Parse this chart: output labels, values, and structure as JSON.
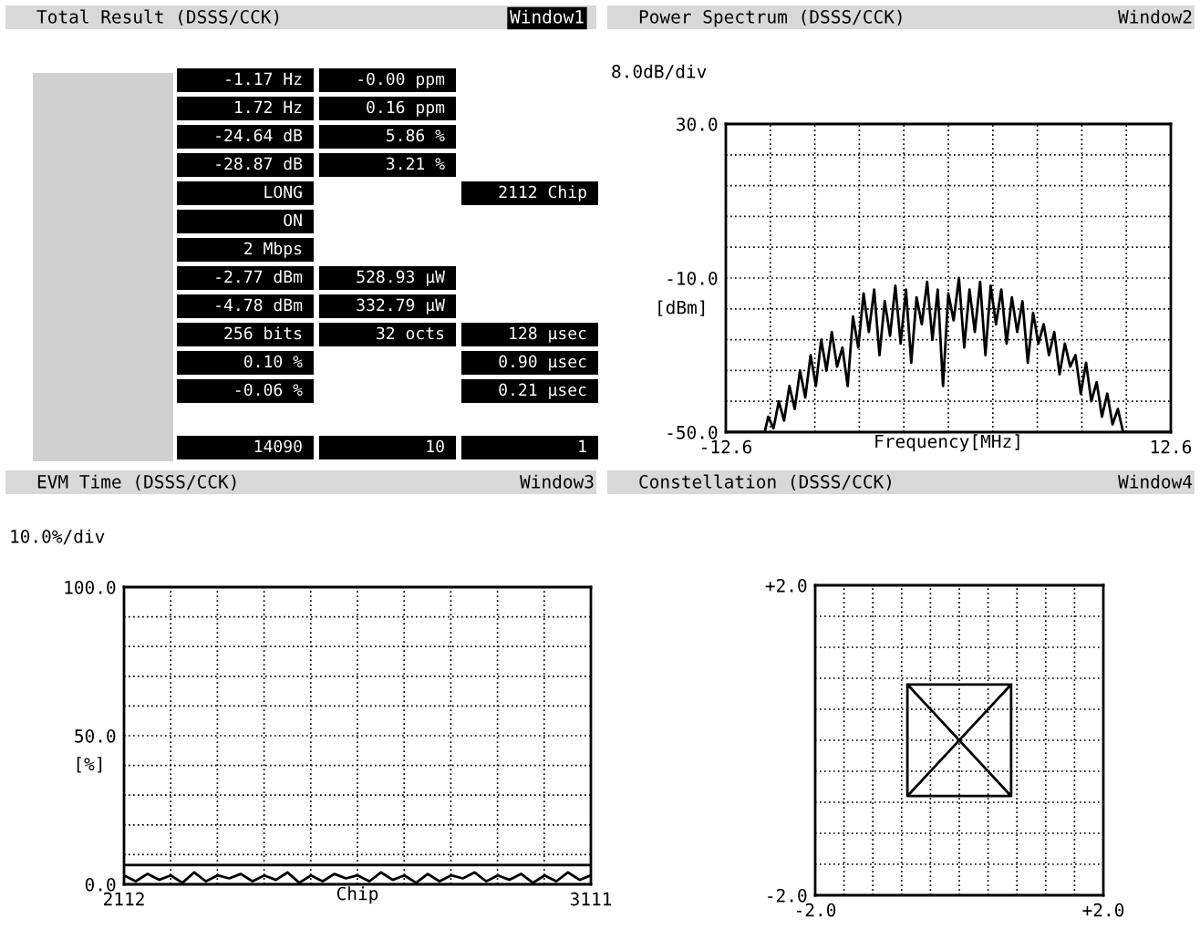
{
  "chart_data": [
    {
      "type": "other",
      "title": "Total Result (DSSS/CCK)",
      "annotations": [
        "Window1",
        "-1.17 Hz",
        "-0.00 ppm",
        "1.72 Hz",
        "0.16 ppm",
        "-24.64 dB",
        "5.86 %",
        "-28.87 dB",
        "3.21 %",
        "LONG",
        "2112 Chip",
        "ON",
        "2 Mbps",
        "-2.77 dBm",
        "528.93 µW",
        "-4.78 dBm",
        "332.79 µW",
        "256 bits",
        "32 octs",
        "128 µsec",
        "0.10 %",
        "0.90 µsec",
        "-0.06 %",
        "0.21 µsec",
        "14090",
        "10",
        "1"
      ]
    },
    {
      "type": "line",
      "title": "Power Spectrum (DSSS/CCK)",
      "subtitle": "8.0dB/div",
      "xlabel": "Frequency[MHz]",
      "ylabel": "[dBm]",
      "annotations": [
        "Window2"
      ],
      "xlim": [
        -12.6,
        12.6
      ],
      "xticks": [
        {
          "value": -12.6,
          "label": "-12.6"
        },
        {
          "value": -10.08,
          "label": null
        },
        {
          "value": -7.56,
          "label": null
        },
        {
          "value": -5.04,
          "label": null
        },
        {
          "value": -2.52,
          "label": null
        },
        {
          "value": 0,
          "label": null
        },
        {
          "value": 2.52,
          "label": null
        },
        {
          "value": 5.04,
          "label": null
        },
        {
          "value": 7.56,
          "label": null
        },
        {
          "value": 10.08,
          "label": null
        },
        {
          "value": 12.6,
          "label": "12.6"
        }
      ],
      "ylim": [
        -50,
        30
      ],
      "yticks": [
        {
          "value": -50,
          "label": "-50.0"
        },
        {
          "value": -42,
          "label": null
        },
        {
          "value": -34,
          "label": null
        },
        {
          "value": -26,
          "label": null
        },
        {
          "value": -18,
          "label": null
        },
        {
          "value": -10,
          "label": "-10.0"
        },
        {
          "value": -2,
          "label": null
        },
        {
          "value": 6,
          "label": null
        },
        {
          "value": 14,
          "label": null
        },
        {
          "value": 22,
          "label": null
        },
        {
          "value": 30,
          "label": "30.0"
        }
      ],
      "grid": true,
      "series": [
        {
          "color": "#000000",
          "x": [
            -12.6,
            -10.4,
            -10.2,
            -9.9,
            -9.6,
            -9.3,
            -9.0,
            -8.7,
            -8.4,
            -8.1,
            -7.8,
            -7.5,
            -7.2,
            -6.9,
            -6.6,
            -6.3,
            -6.0,
            -5.7,
            -5.4,
            -5.1,
            -4.8,
            -4.5,
            -4.2,
            -3.9,
            -3.6,
            -3.3,
            -3.0,
            -2.7,
            -2.4,
            -2.1,
            -1.8,
            -1.5,
            -1.2,
            -0.9,
            -0.6,
            -0.3,
            0.0,
            0.3,
            0.6,
            0.9,
            1.2,
            1.5,
            1.8,
            2.1,
            2.4,
            2.7,
            3.0,
            3.3,
            3.6,
            3.9,
            4.2,
            4.5,
            4.8,
            5.1,
            5.4,
            5.7,
            6.0,
            6.3,
            6.6,
            6.9,
            7.2,
            7.5,
            7.8,
            8.1,
            8.4,
            8.7,
            9.0,
            9.3,
            9.6,
            9.9,
            12.6
          ],
          "values": [
            -50,
            -50,
            -46,
            -49,
            -42,
            -47,
            -38,
            -44,
            -34,
            -41,
            -30,
            -38,
            -26,
            -34,
            -24,
            -33,
            -28,
            -38,
            -20,
            -28,
            -14,
            -24,
            -13,
            -30,
            -16,
            -25,
            -12,
            -27,
            -13,
            -32,
            -15,
            -22,
            -11,
            -26,
            -13,
            -38,
            -14,
            -21,
            -10,
            -28,
            -13,
            -24,
            -11,
            -30,
            -12,
            -22,
            -13,
            -27,
            -15,
            -24,
            -16,
            -32,
            -19,
            -27,
            -22,
            -30,
            -24,
            -35,
            -27,
            -33,
            -30,
            -40,
            -32,
            -42,
            -37,
            -46,
            -40,
            -48,
            -44,
            -50,
            -50
          ]
        }
      ]
    },
    {
      "type": "line",
      "title": "EVM Time (DSSS/CCK)",
      "subtitle": "10.0%/div",
      "xlabel": "Chip",
      "ylabel": "[%]",
      "annotations": [
        "Window3"
      ],
      "xlim": [
        2112,
        3111
      ],
      "xticks": [
        {
          "value": 2112,
          "label": "2112"
        },
        {
          "value": 2211.9,
          "label": null
        },
        {
          "value": 2311.8,
          "label": null
        },
        {
          "value": 2411.7,
          "label": null
        },
        {
          "value": 2511.6,
          "label": null
        },
        {
          "value": 2611.5,
          "label": null
        },
        {
          "value": 2711.4,
          "label": null
        },
        {
          "value": 2811.3,
          "label": null
        },
        {
          "value": 2911.2,
          "label": null
        },
        {
          "value": 3011.1,
          "label": null
        },
        {
          "value": 3111,
          "label": "3111"
        }
      ],
      "ylim": [
        0,
        100
      ],
      "yticks": [
        {
          "value": 0,
          "label": "0.0"
        },
        {
          "value": 10,
          "label": null
        },
        {
          "value": 20,
          "label": null
        },
        {
          "value": 30,
          "label": null
        },
        {
          "value": 40,
          "label": null
        },
        {
          "value": 50,
          "label": "50.0"
        },
        {
          "value": 60,
          "label": null
        },
        {
          "value": 70,
          "label": null
        },
        {
          "value": 80,
          "label": null
        },
        {
          "value": 90,
          "label": null
        },
        {
          "value": 100,
          "label": "100.0"
        }
      ],
      "grid": true,
      "ref_lines": [
        {
          "axis": "y",
          "value": 6.5,
          "line_style": "solid"
        }
      ],
      "series": [
        {
          "color": "#000000",
          "x": [
            2112,
            2137,
            2162,
            2187,
            2212,
            2237,
            2262,
            2287,
            2312,
            2337,
            2362,
            2387,
            2412,
            2437,
            2462,
            2487,
            2512,
            2537,
            2562,
            2587,
            2612,
            2637,
            2662,
            2687,
            2712,
            2737,
            2762,
            2787,
            2812,
            2837,
            2862,
            2887,
            2912,
            2937,
            2962,
            2987,
            3012,
            3037,
            3062,
            3087,
            3111
          ],
          "values": [
            3,
            1,
            3.5,
            1.5,
            3,
            0.5,
            4,
            1,
            3,
            2,
            3.5,
            1,
            3,
            1.5,
            4,
            0.5,
            3,
            1,
            3.5,
            2,
            3,
            1,
            4,
            1.5,
            3,
            0.5,
            3.5,
            1,
            3,
            2,
            4,
            1,
            3,
            1.5,
            3.5,
            0.5,
            3,
            1,
            4,
            1.5,
            3
          ]
        }
      ]
    },
    {
      "type": "line",
      "title": "Constellation (DSSS/CCK)",
      "annotations": [
        "Window4"
      ],
      "xlim": [
        -2,
        2
      ],
      "xticks": [
        {
          "value": -2,
          "label": "-2.0"
        },
        {
          "value": -1.6,
          "label": null
        },
        {
          "value": -1.2,
          "label": null
        },
        {
          "value": -0.8,
          "label": null
        },
        {
          "value": -0.4,
          "label": null
        },
        {
          "value": 0,
          "label": null
        },
        {
          "value": 0.4,
          "label": null
        },
        {
          "value": 0.8,
          "label": null
        },
        {
          "value": 1.2,
          "label": null
        },
        {
          "value": 1.6,
          "label": null
        },
        {
          "value": 2,
          "label": "+2.0"
        }
      ],
      "ylim": [
        -2,
        2
      ],
      "yticks": [
        {
          "value": -2,
          "label": "-2.0"
        },
        {
          "value": -1.6,
          "label": null
        },
        {
          "value": -1.2,
          "label": null
        },
        {
          "value": -0.8,
          "label": null
        },
        {
          "value": -0.4,
          "label": null
        },
        {
          "value": 0,
          "label": null
        },
        {
          "value": 0.4,
          "label": null
        },
        {
          "value": 0.8,
          "label": null
        },
        {
          "value": 1.2,
          "label": null
        },
        {
          "value": 1.6,
          "label": null
        },
        {
          "value": 2,
          "label": "+2.0"
        }
      ],
      "grid": true,
      "series": [
        {
          "color": "#000000",
          "x": [
            -0.72,
            0.72,
            -0.72,
            0.72,
            -0.72,
            -0.72,
            0.72,
            0.72
          ],
          "values": [
            0.72,
            0.72,
            -0.72,
            -0.72,
            0.72,
            -0.72,
            -0.72,
            0.72
          ]
        }
      ]
    }
  ]
}
